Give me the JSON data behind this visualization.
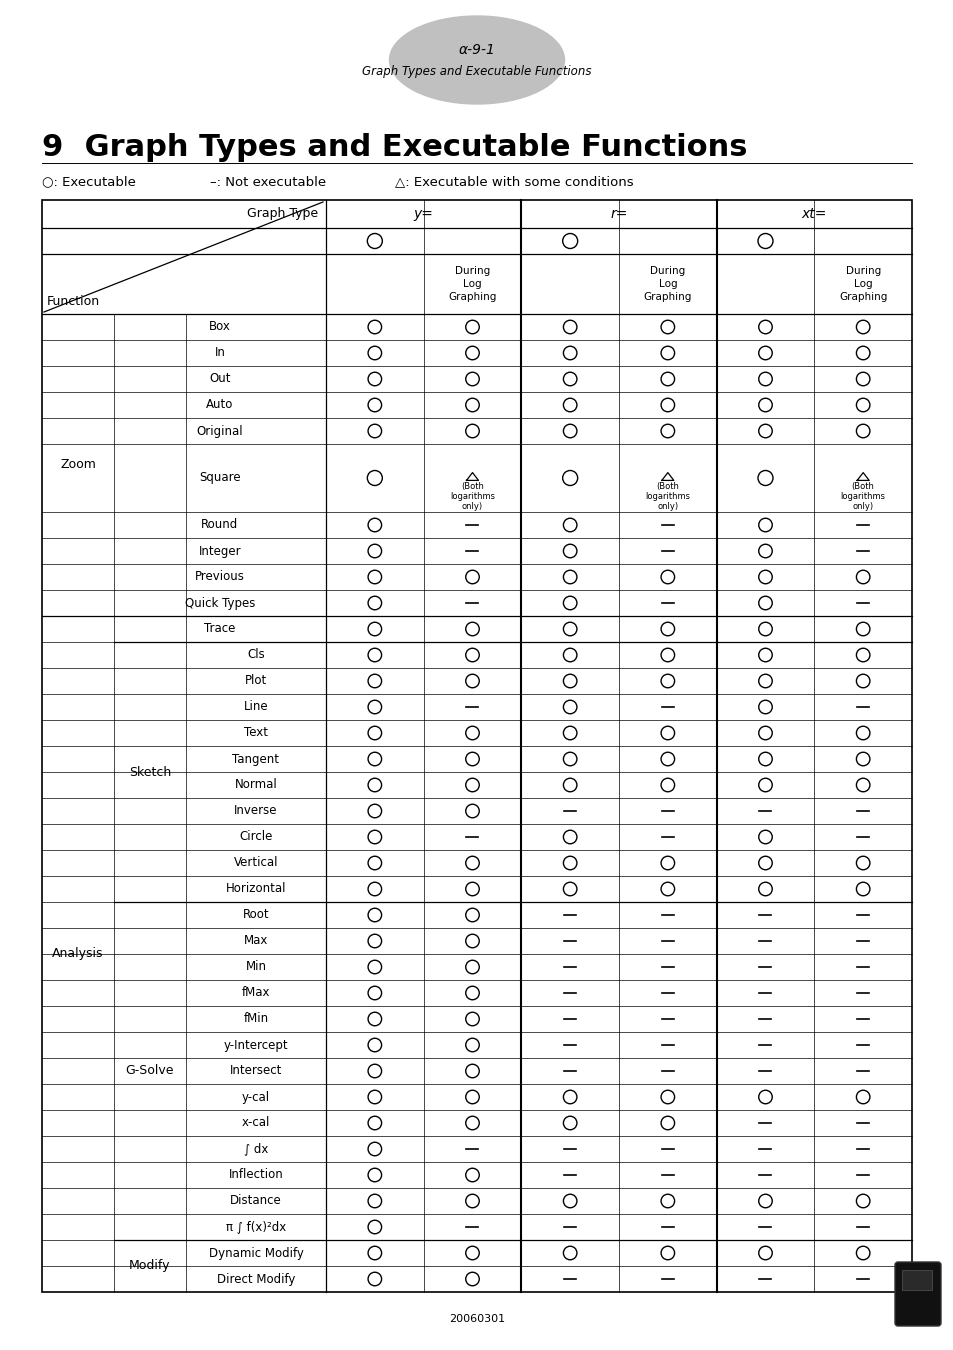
{
  "title_badge": "α-9-1",
  "title_badge_sub": "Graph Types and Executable Functions",
  "main_title": "9  Graph Types and Executable Functions",
  "footnote": "20060301",
  "rows": [
    {
      "cat": "Zoom",
      "sub": "",
      "func": "Box",
      "cols": [
        "O",
        "O",
        "O",
        "O",
        "O",
        "O"
      ]
    },
    {
      "cat": "",
      "sub": "",
      "func": "In",
      "cols": [
        "O",
        "O",
        "O",
        "O",
        "O",
        "O"
      ]
    },
    {
      "cat": "",
      "sub": "",
      "func": "Out",
      "cols": [
        "O",
        "O",
        "O",
        "O",
        "O",
        "O"
      ]
    },
    {
      "cat": "",
      "sub": "",
      "func": "Auto",
      "cols": [
        "O",
        "O",
        "O",
        "O",
        "O",
        "O"
      ]
    },
    {
      "cat": "",
      "sub": "",
      "func": "Original",
      "cols": [
        "O",
        "O",
        "O",
        "O",
        "O",
        "O"
      ]
    },
    {
      "cat": "",
      "sub": "",
      "func": "Square",
      "cols": [
        "O",
        "T",
        "O",
        "T",
        "O",
        "T"
      ],
      "tall": true
    },
    {
      "cat": "",
      "sub": "",
      "func": "Round",
      "cols": [
        "O",
        "-",
        "O",
        "-",
        "O",
        "-"
      ]
    },
    {
      "cat": "",
      "sub": "",
      "func": "Integer",
      "cols": [
        "O",
        "-",
        "O",
        "-",
        "O",
        "-"
      ]
    },
    {
      "cat": "",
      "sub": "",
      "func": "Previous",
      "cols": [
        "O",
        "O",
        "O",
        "O",
        "O",
        "O"
      ]
    },
    {
      "cat": "",
      "sub": "",
      "func": "Quick Types",
      "cols": [
        "O",
        "-",
        "O",
        "-",
        "O",
        "-"
      ]
    },
    {
      "cat": "Analysis",
      "sub": "",
      "func": "Trace",
      "cols": [
        "O",
        "O",
        "O",
        "O",
        "O",
        "O"
      ],
      "span_sub": true
    },
    {
      "cat": "",
      "sub": "Sketch",
      "func": "Cls",
      "cols": [
        "O",
        "O",
        "O",
        "O",
        "O",
        "O"
      ]
    },
    {
      "cat": "",
      "sub": "",
      "func": "Plot",
      "cols": [
        "O",
        "O",
        "O",
        "O",
        "O",
        "O"
      ]
    },
    {
      "cat": "",
      "sub": "",
      "func": "Line",
      "cols": [
        "O",
        "-",
        "O",
        "-",
        "O",
        "-"
      ]
    },
    {
      "cat": "",
      "sub": "",
      "func": "Text",
      "cols": [
        "O",
        "O",
        "O",
        "O",
        "O",
        "O"
      ]
    },
    {
      "cat": "",
      "sub": "",
      "func": "Tangent",
      "cols": [
        "O",
        "O",
        "O",
        "O",
        "O",
        "O"
      ]
    },
    {
      "cat": "",
      "sub": "",
      "func": "Normal",
      "cols": [
        "O",
        "O",
        "O",
        "O",
        "O",
        "O"
      ]
    },
    {
      "cat": "",
      "sub": "",
      "func": "Inverse",
      "cols": [
        "O",
        "O",
        "-",
        "-",
        "-",
        "-"
      ]
    },
    {
      "cat": "",
      "sub": "",
      "func": "Circle",
      "cols": [
        "O",
        "-",
        "O",
        "-",
        "O",
        "-"
      ]
    },
    {
      "cat": "",
      "sub": "",
      "func": "Vertical",
      "cols": [
        "O",
        "O",
        "O",
        "O",
        "O",
        "O"
      ]
    },
    {
      "cat": "",
      "sub": "",
      "func": "Horizontal",
      "cols": [
        "O",
        "O",
        "O",
        "O",
        "O",
        "O"
      ]
    },
    {
      "cat": "",
      "sub": "G-Solve",
      "func": "Root",
      "cols": [
        "O",
        "O",
        "-",
        "-",
        "-",
        "-"
      ]
    },
    {
      "cat": "",
      "sub": "",
      "func": "Max",
      "cols": [
        "O",
        "O",
        "-",
        "-",
        "-",
        "-"
      ]
    },
    {
      "cat": "",
      "sub": "",
      "func": "Min",
      "cols": [
        "O",
        "O",
        "-",
        "-",
        "-",
        "-"
      ]
    },
    {
      "cat": "",
      "sub": "",
      "func": "fMax",
      "cols": [
        "O",
        "O",
        "-",
        "-",
        "-",
        "-"
      ]
    },
    {
      "cat": "",
      "sub": "",
      "func": "fMin",
      "cols": [
        "O",
        "O",
        "-",
        "-",
        "-",
        "-"
      ]
    },
    {
      "cat": "",
      "sub": "",
      "func": "y-Intercept",
      "cols": [
        "O",
        "O",
        "-",
        "-",
        "-",
        "-"
      ]
    },
    {
      "cat": "",
      "sub": "",
      "func": "Intersect",
      "cols": [
        "O",
        "O",
        "-",
        "-",
        "-",
        "-"
      ]
    },
    {
      "cat": "",
      "sub": "",
      "func": "y-cal",
      "cols": [
        "O",
        "O",
        "O",
        "O",
        "O",
        "O"
      ]
    },
    {
      "cat": "",
      "sub": "",
      "func": "x-cal",
      "cols": [
        "O",
        "O",
        "O",
        "O",
        "-",
        "-"
      ]
    },
    {
      "cat": "",
      "sub": "",
      "func": "∫ dx",
      "cols": [
        "O",
        "-",
        "-",
        "-",
        "-",
        "-"
      ]
    },
    {
      "cat": "",
      "sub": "",
      "func": "Inflection",
      "cols": [
        "O",
        "O",
        "-",
        "-",
        "-",
        "-"
      ]
    },
    {
      "cat": "",
      "sub": "",
      "func": "Distance",
      "cols": [
        "O",
        "O",
        "O",
        "O",
        "O",
        "O"
      ]
    },
    {
      "cat": "",
      "sub": "",
      "func": "π ∫ f(x)²dx",
      "cols": [
        "O",
        "-",
        "-",
        "-",
        "-",
        "-"
      ]
    },
    {
      "cat": "",
      "sub": "Modify",
      "func": "Dynamic Modify",
      "cols": [
        "O",
        "O",
        "O",
        "O",
        "O",
        "O"
      ]
    },
    {
      "cat": "",
      "sub": "",
      "func": "Direct Modify",
      "cols": [
        "O",
        "O",
        "-",
        "-",
        "-",
        "-"
      ]
    }
  ]
}
